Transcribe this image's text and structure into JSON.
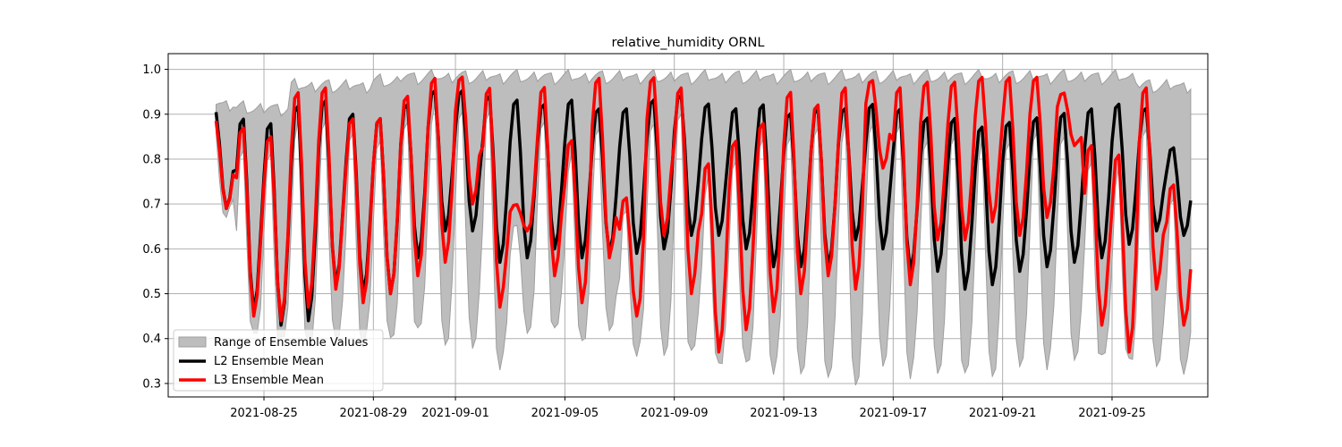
{
  "chart_data": {
    "type": "line",
    "title": "relative_humidity ORNL",
    "xlabel": "",
    "ylabel": "",
    "x_start": "2021-08-23",
    "x_end": "2021-09-27",
    "xlim": [
      "2021-08-21T12:00",
      "2021-09-28T12:00"
    ],
    "ylim": [
      0.27,
      1.035
    ],
    "x_ticks": [
      "2021-08-25",
      "2021-08-29",
      "2021-09-01",
      "2021-09-05",
      "2021-09-09",
      "2021-09-13",
      "2021-09-17",
      "2021-09-21",
      "2021-09-25"
    ],
    "y_ticks": [
      "0.3",
      "0.4",
      "0.5",
      "0.6",
      "0.7",
      "0.8",
      "0.9",
      "1.0"
    ],
    "grid": true,
    "legend_position": "lower-left",
    "legend": [
      {
        "label": "Range of Ensemble Values",
        "kind": "band"
      },
      {
        "label": "L2 Ensemble Mean",
        "kind": "line"
      },
      {
        "label": "L3 Ensemble Mean",
        "kind": "line"
      }
    ],
    "colors": {
      "band_fill": "#bdbdbd",
      "band_edge": "#9e9e9e",
      "l2": "#000000",
      "l3": "#ff0000",
      "grid": "#b0b0b0"
    },
    "daily": {
      "dates": [
        "2021-08-23",
        "2021-08-24",
        "2021-08-25",
        "2021-08-26",
        "2021-08-27",
        "2021-08-28",
        "2021-08-29",
        "2021-08-30",
        "2021-08-31",
        "2021-09-01",
        "2021-09-02",
        "2021-09-03",
        "2021-09-04",
        "2021-09-05",
        "2021-09-06",
        "2021-09-07",
        "2021-09-08",
        "2021-09-09",
        "2021-09-10",
        "2021-09-11",
        "2021-09-12",
        "2021-09-13",
        "2021-09-14",
        "2021-09-15",
        "2021-09-16",
        "2021-09-17",
        "2021-09-18",
        "2021-09-19",
        "2021-09-20",
        "2021-09-21",
        "2021-09-22",
        "2021-09-23",
        "2021-09-24",
        "2021-09-25",
        "2021-09-26",
        "2021-09-27"
      ],
      "l2_max": [
        0.91,
        0.9,
        0.89,
        0.93,
        0.94,
        0.91,
        0.9,
        0.93,
        0.96,
        0.96,
        0.95,
        0.94,
        0.93,
        0.94,
        0.92,
        0.92,
        0.94,
        0.95,
        0.93,
        0.92,
        0.93,
        0.91,
        0.92,
        0.92,
        0.93,
        0.92,
        0.9,
        0.9,
        0.88,
        0.89,
        0.9,
        0.91,
        0.92,
        0.93,
        0.92,
        0.83
      ],
      "l2_min": [
        0.69,
        0.46,
        0.43,
        0.44,
        0.52,
        0.5,
        0.5,
        0.58,
        0.64,
        0.64,
        0.57,
        0.58,
        0.6,
        0.58,
        0.59,
        0.59,
        0.6,
        0.63,
        0.63,
        0.6,
        0.56,
        0.56,
        0.56,
        0.62,
        0.6,
        0.55,
        0.55,
        0.51,
        0.52,
        0.55,
        0.56,
        0.57,
        0.58,
        0.61,
        0.64,
        0.63
      ],
      "l3_max": [
        0.89,
        0.88,
        0.86,
        0.96,
        0.97,
        0.9,
        0.9,
        0.95,
        0.99,
        0.99,
        0.97,
        0.7,
        0.97,
        0.85,
        0.99,
        0.72,
        0.99,
        0.97,
        0.8,
        0.85,
        0.89,
        0.96,
        0.93,
        0.97,
        0.98,
        0.97,
        0.98,
        0.98,
        0.99,
        0.99,
        0.99,
        0.95,
        0.84,
        0.82,
        0.97,
        0.75
      ],
      "l3_min": [
        0.69,
        0.45,
        0.44,
        0.47,
        0.51,
        0.48,
        0.5,
        0.54,
        0.57,
        0.7,
        0.47,
        0.64,
        0.54,
        0.48,
        0.58,
        0.45,
        0.63,
        0.5,
        0.37,
        0.42,
        0.46,
        0.5,
        0.54,
        0.51,
        0.78,
        0.52,
        0.62,
        0.62,
        0.66,
        0.63,
        0.67,
        0.83,
        0.43,
        0.37,
        0.51,
        0.43
      ],
      "band_max": [
        0.94,
        0.93,
        0.93,
        0.98,
        0.98,
        0.98,
        0.99,
        1.0,
        1.0,
        1.0,
        1.0,
        1.0,
        1.0,
        1.0,
        1.0,
        1.0,
        1.0,
        1.0,
        1.0,
        1.0,
        1.0,
        1.0,
        1.0,
        1.0,
        1.0,
        1.0,
        1.0,
        1.0,
        1.0,
        1.0,
        1.0,
        1.0,
        1.0,
        1.0,
        0.98,
        0.98
      ],
      "band_min": [
        0.67,
        0.4,
        0.38,
        0.38,
        0.38,
        0.38,
        0.39,
        0.4,
        0.38,
        0.36,
        0.33,
        0.4,
        0.4,
        0.39,
        0.4,
        0.36,
        0.35,
        0.35,
        0.34,
        0.33,
        0.32,
        0.31,
        0.29,
        0.29,
        0.32,
        0.31,
        0.31,
        0.3,
        0.31,
        0.32,
        0.33,
        0.34,
        0.34,
        0.35,
        0.32,
        0.32
      ]
    }
  }
}
